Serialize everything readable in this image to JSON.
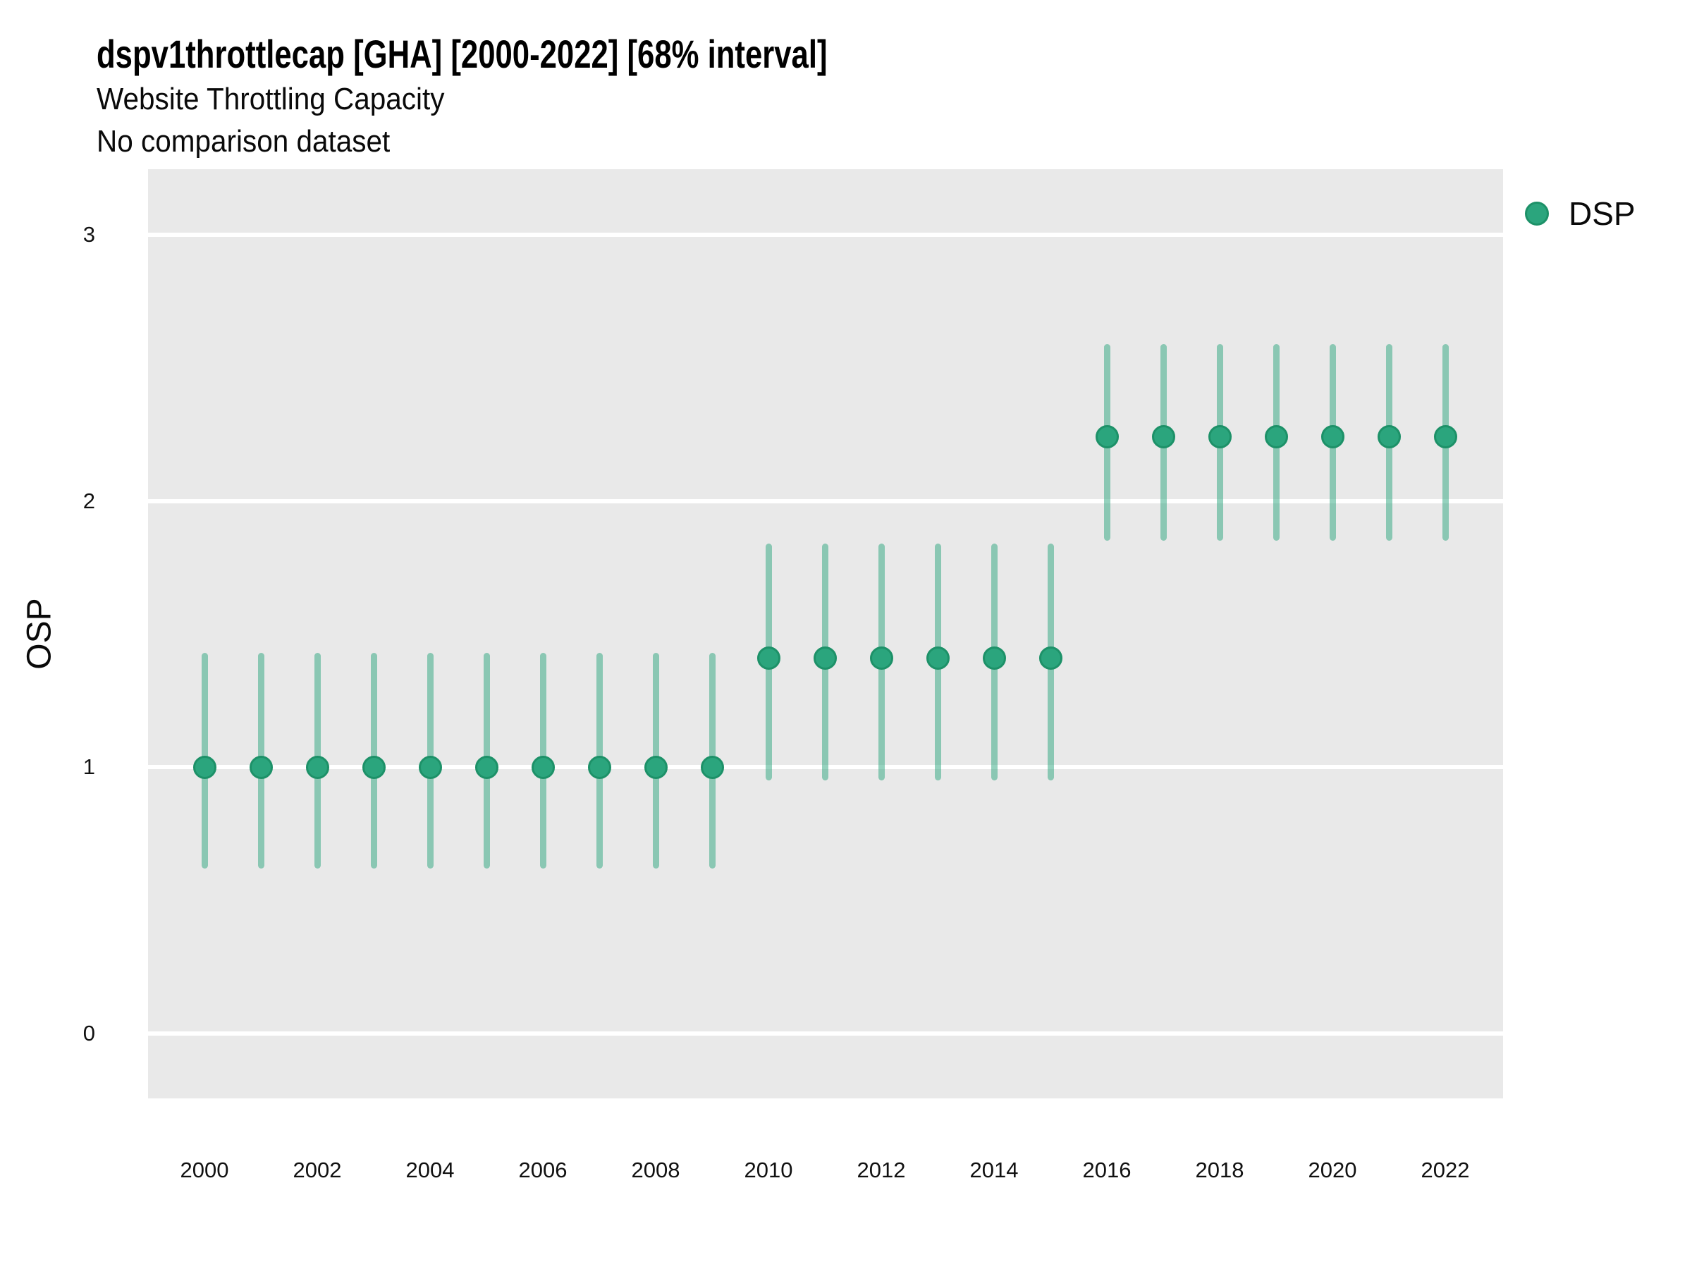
{
  "header": {
    "title": "dspv1throttlecap [GHA] [2000-2022] [68% interval]",
    "subtitle": "Website Throttling Capacity",
    "note": "No comparison dataset"
  },
  "y_axis": {
    "label": "OSP",
    "tick_labels": [
      "3",
      "2",
      "1",
      "0"
    ]
  },
  "x_axis": {
    "tick_labels": [
      "2000",
      "2002",
      "2004",
      "2006",
      "2008",
      "2010",
      "2012",
      "2014",
      "2016",
      "2018",
      "2020",
      "2022"
    ]
  },
  "legend": {
    "position": "top-right",
    "items": [
      {
        "label": "DSP",
        "marker": "circle",
        "color": "#2BA57D"
      }
    ]
  },
  "colors": {
    "accent": "#2BA57D",
    "accent_edge": "#1D9168",
    "interval_band": "rgba(43,165,125,0.5)",
    "panel_background": "#E9E9E9",
    "gridline": "#FFFFFF"
  },
  "chart_data": {
    "type": "scatter",
    "title": "dspv1throttlecap [GHA] [2000-2022] [68% interval]",
    "subtitle": "Website Throttling Capacity",
    "note": "No comparison dataset",
    "xlabel": "",
    "ylabel": "OSP",
    "interval_level": "68%",
    "ylim": [
      -0.25,
      3.25
    ],
    "yticks": [
      0,
      1,
      2,
      3
    ],
    "xticks": [
      2000,
      2002,
      2004,
      2006,
      2008,
      2010,
      2012,
      2014,
      2016,
      2018,
      2020,
      2022
    ],
    "grid": "horizontal",
    "legend_position": "right-top",
    "series": [
      {
        "name": "DSP",
        "marker_color": "#2BA57D",
        "marker_edge_color": "#1D9168",
        "interval_color": "rgba(43,165,125,0.5)",
        "x": [
          2000,
          2001,
          2002,
          2003,
          2004,
          2005,
          2006,
          2007,
          2008,
          2009,
          2010,
          2011,
          2012,
          2013,
          2014,
          2015,
          2016,
          2017,
          2018,
          2019,
          2020,
          2021,
          2022
        ],
        "y": [
          1.0,
          1.0,
          1.0,
          1.0,
          1.0,
          1.0,
          1.0,
          1.0,
          1.0,
          1.0,
          1.41,
          1.41,
          1.41,
          1.41,
          1.41,
          1.41,
          2.24,
          2.24,
          2.24,
          2.24,
          2.24,
          2.24,
          2.24
        ],
        "low": [
          0.62,
          0.62,
          0.62,
          0.62,
          0.62,
          0.62,
          0.62,
          0.62,
          0.62,
          0.62,
          0.95,
          0.95,
          0.95,
          0.95,
          0.95,
          0.95,
          1.85,
          1.85,
          1.85,
          1.85,
          1.85,
          1.85,
          1.85
        ],
        "high": [
          1.43,
          1.43,
          1.43,
          1.43,
          1.43,
          1.43,
          1.43,
          1.43,
          1.43,
          1.43,
          1.84,
          1.84,
          1.84,
          1.84,
          1.84,
          1.84,
          2.59,
          2.59,
          2.59,
          2.59,
          2.59,
          2.59,
          2.59
        ]
      }
    ]
  }
}
